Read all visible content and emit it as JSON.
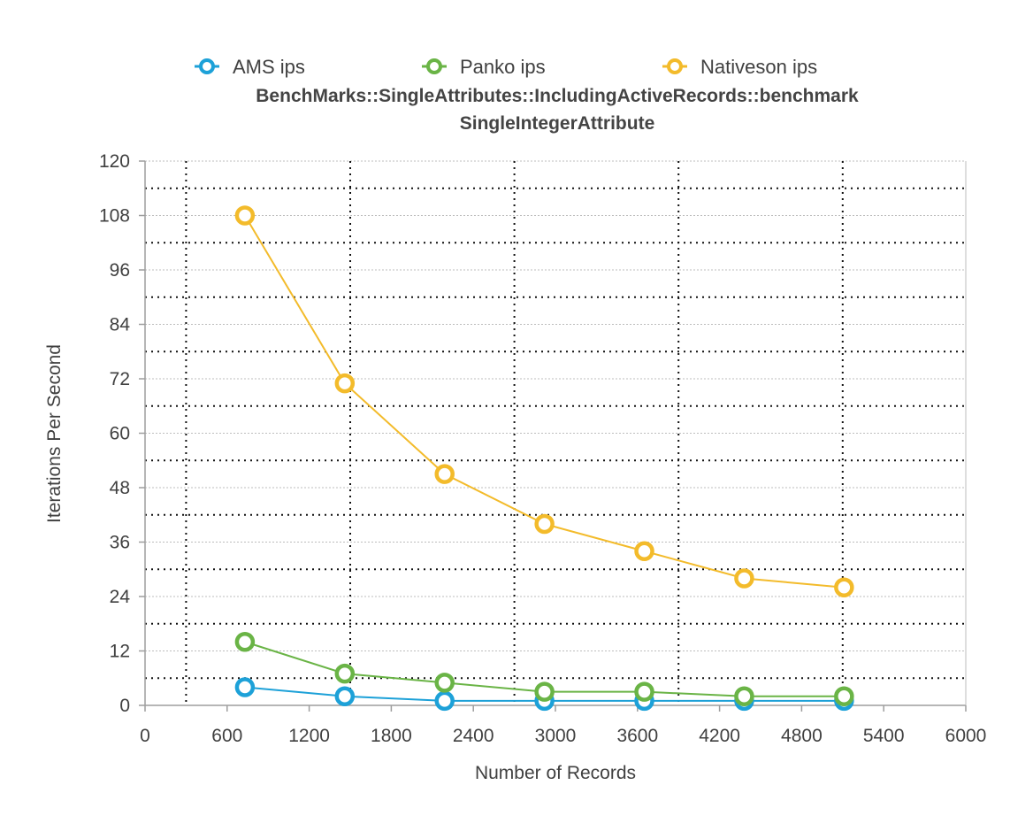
{
  "chart_data": {
    "type": "line",
    "title": "BenchMarks::SingleAttributes::IncludingActiveRecords::benchmark",
    "subtitle": "SingleIntegerAttribute",
    "xlabel": "Number of Records",
    "ylabel": "Iterations Per Second",
    "xlim": [
      0,
      6000
    ],
    "ylim": [
      0,
      120
    ],
    "xticks": [
      0,
      600,
      1200,
      1800,
      2400,
      3000,
      3600,
      4200,
      4800,
      5400,
      6000
    ],
    "yticks": [
      0,
      12,
      24,
      36,
      48,
      60,
      72,
      84,
      96,
      108,
      120
    ],
    "x": [
      730,
      1460,
      2190,
      2920,
      3650,
      4380,
      5110
    ],
    "grid": true,
    "legend_position": "top",
    "series": [
      {
        "name": "AMS ips",
        "color": "#1da1d8",
        "values": [
          4,
          2,
          1,
          1,
          1,
          1,
          1
        ]
      },
      {
        "name": "Panko ips",
        "color": "#6ab446",
        "values": [
          14,
          7,
          5,
          3,
          3,
          2,
          2
        ]
      },
      {
        "name": "Nativeson ips",
        "color": "#f3bb2b",
        "values": [
          108,
          71,
          51,
          40,
          34,
          28,
          26
        ]
      }
    ]
  }
}
